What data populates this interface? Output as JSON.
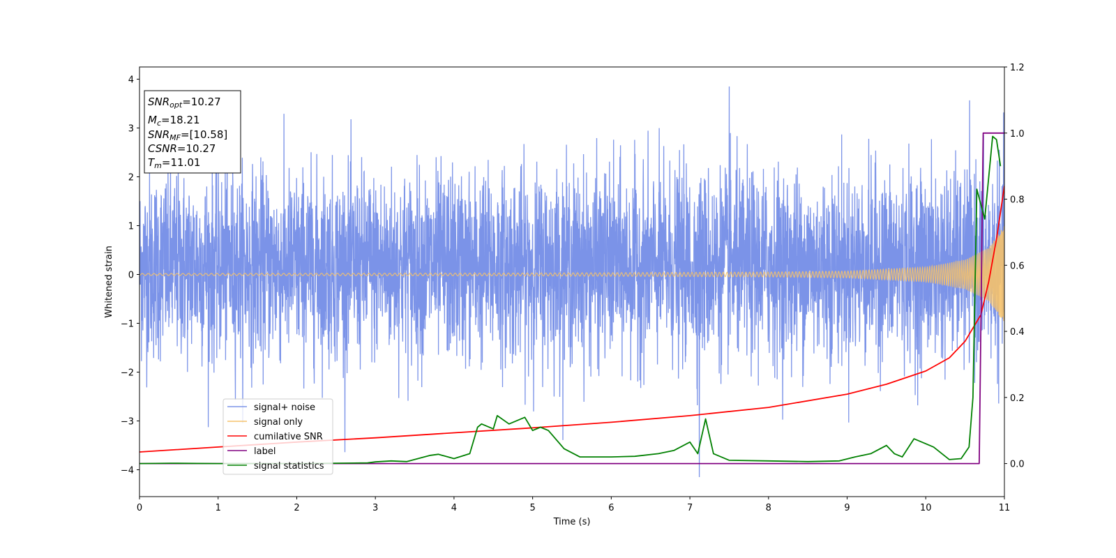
{
  "chart_data": {
    "type": "line",
    "xlabel": "Time (s)",
    "ylabel": "Whitened strain",
    "xlim": [
      0,
      11
    ],
    "ylim": [
      -4.55,
      4.25
    ],
    "ylim_right": [
      -0.1,
      1.2
    ],
    "x_ticks": [
      "0",
      "1",
      "2",
      "3",
      "4",
      "5",
      "6",
      "7",
      "8",
      "9",
      "10",
      "11"
    ],
    "y_ticks": [
      "−4",
      "−3",
      "−2",
      "−1",
      "0",
      "1",
      "2",
      "3",
      "4"
    ],
    "y_right_ticks": [
      "0.0",
      "0.2",
      "0.4",
      "0.6",
      "0.8",
      "1.0",
      "1.2"
    ],
    "grid": false,
    "legend_position": "lower-left",
    "info_box": {
      "snr_opt": {
        "sym": "SNR",
        "sub": "opt",
        "value": "=10.27"
      },
      "mc": {
        "sym": "M",
        "sub": "c",
        "value": "=18.21"
      },
      "snr_mf": {
        "sym": "SNR",
        "sub": "MF",
        "value": "=[10.58]"
      },
      "csnr": {
        "sym": "CSNR",
        "sub": "",
        "value": "=10.27"
      },
      "tm": {
        "sym": "T",
        "sub": "m",
        "value": "=11.01"
      }
    },
    "series": [
      {
        "name": "signal+ noise",
        "axis": "left",
        "color": "#7b93e8",
        "description_values": "noisy whitened strain, roughly gaussian with spread ~1, spikes up to about 3.85 and down to about -4.15",
        "extrema": {
          "max": 3.85,
          "max_at": 7.5,
          "min": -4.15,
          "min_at": 7.12
        }
      },
      {
        "name": "signal only",
        "axis": "left",
        "color": "#f5c26b",
        "amplitude_points": {
          "x": [
            0,
            5,
            8,
            9,
            10,
            10.5,
            10.8,
            11
          ],
          "y": [
            0.02,
            0.03,
            0.05,
            0.07,
            0.15,
            0.3,
            0.55,
            1.0
          ]
        }
      },
      {
        "name": "cumilative SNR",
        "axis": "right",
        "color": "#ff0000",
        "x": [
          0,
          1,
          2,
          3,
          4,
          5,
          6,
          7,
          8,
          9,
          9.5,
          10,
          10.3,
          10.5,
          10.7,
          10.8,
          10.9,
          11
        ],
        "y": [
          0.035,
          0.05,
          0.065,
          0.078,
          0.093,
          0.108,
          0.125,
          0.145,
          0.17,
          0.21,
          0.24,
          0.28,
          0.32,
          0.37,
          0.45,
          0.55,
          0.68,
          0.84
        ]
      },
      {
        "name": "label",
        "axis": "right",
        "color": "#800080",
        "x": [
          0,
          10.68,
          10.73,
          11
        ],
        "y": [
          0.0,
          0.0,
          1.0,
          1.0
        ]
      },
      {
        "name": "signal statistics",
        "axis": "right",
        "color": "#008000",
        "x": [
          0,
          0.4,
          1,
          2,
          2.9,
          3.0,
          3.2,
          3.4,
          3.7,
          3.8,
          4.0,
          4.2,
          4.3,
          4.35,
          4.5,
          4.55,
          4.7,
          4.9,
          5.0,
          5.1,
          5.2,
          5.4,
          5.6,
          6.0,
          6.3,
          6.6,
          6.8,
          7.0,
          7.1,
          7.2,
          7.3,
          7.5,
          8.0,
          8.5,
          8.9,
          9.1,
          9.3,
          9.5,
          9.6,
          9.7,
          9.85,
          9.95,
          10.1,
          10.3,
          10.45,
          10.55,
          10.6,
          10.65,
          10.75,
          10.85,
          10.9,
          10.95
        ],
        "y": [
          0.0,
          0.001,
          0.0,
          0.0,
          0.002,
          0.005,
          0.008,
          0.006,
          0.025,
          0.028,
          0.015,
          0.03,
          0.11,
          0.12,
          0.105,
          0.145,
          0.12,
          0.14,
          0.1,
          0.11,
          0.1,
          0.045,
          0.02,
          0.02,
          0.022,
          0.03,
          0.04,
          0.065,
          0.03,
          0.135,
          0.03,
          0.01,
          0.008,
          0.006,
          0.008,
          0.02,
          0.03,
          0.055,
          0.03,
          0.02,
          0.075,
          0.065,
          0.05,
          0.012,
          0.015,
          0.05,
          0.2,
          0.83,
          0.74,
          0.99,
          0.98,
          0.9
        ]
      }
    ]
  }
}
